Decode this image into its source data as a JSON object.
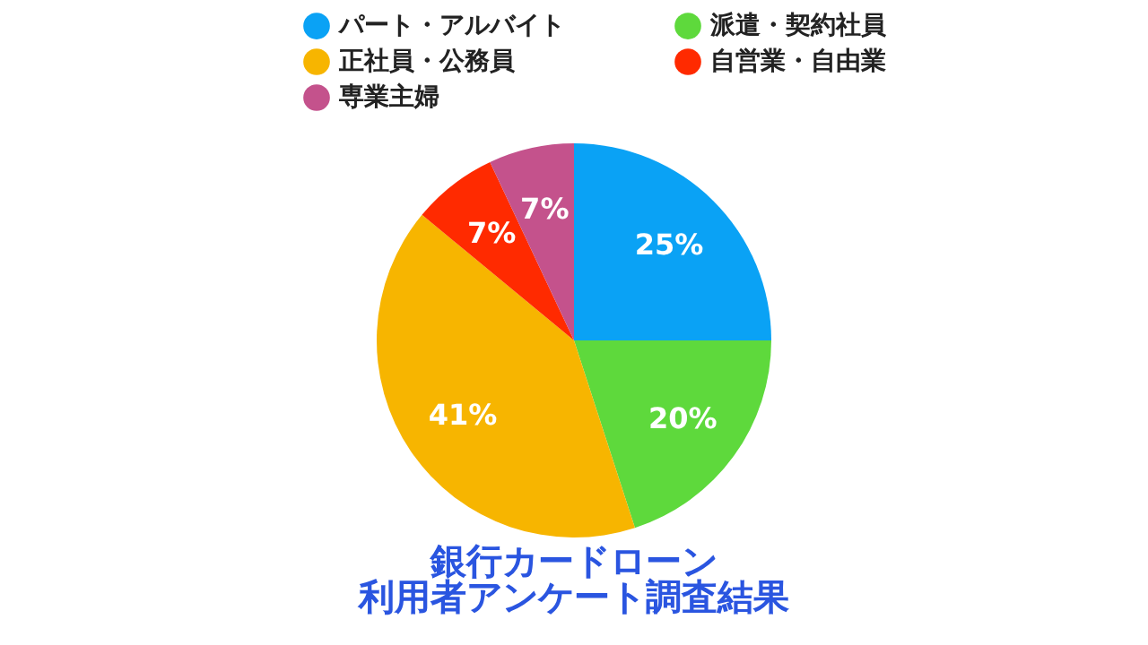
{
  "chart_data": {
    "type": "pie",
    "title": "銀行カードローン",
    "subtitle": "利用者アンケート調査結果",
    "categories": [
      "パート・アルバイト",
      "派遣・契約社員",
      "正社員・公務員",
      "自営業・自由業",
      "専業主婦"
    ],
    "values": [
      25,
      20,
      41,
      7,
      7
    ],
    "colors": [
      "#0aa2f5",
      "#5ed93c",
      "#f7b500",
      "#ff2a00",
      "#c4528c"
    ],
    "value_labels": [
      "25%",
      "20%",
      "41%",
      "7%",
      "7%"
    ],
    "legend": "top"
  }
}
